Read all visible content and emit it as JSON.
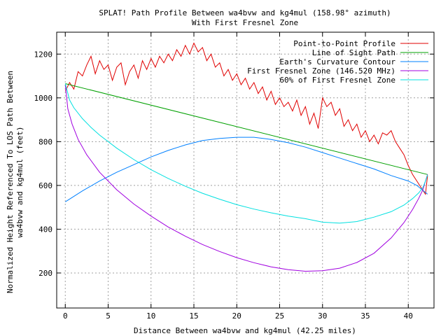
{
  "chart_data": {
    "type": "line",
    "title": "SPLAT! Path Profile Between wa4bvw and kg4mul (158.98° azimuth)",
    "subtitle": "With First Fresnel Zone",
    "xlabel": "Distance Between wa4bvw and kg4mul (42.25 miles)",
    "ylabel": [
      "Normalized Height Referenced To LOS Path Between",
      "wa4bvw and kg4mul (feet)"
    ],
    "xlim": [
      -1,
      43
    ],
    "ylim": [
      40,
      1300
    ],
    "xticks": [
      0,
      5,
      10,
      15,
      20,
      25,
      30,
      35,
      40
    ],
    "yticks": [
      200,
      400,
      600,
      800,
      1000,
      1200
    ],
    "grid": true,
    "legend_position": "top-right",
    "series": [
      {
        "name": "Point-to-Point Profile",
        "color": "#e00000",
        "x": [
          0,
          0.5,
          1,
          1.5,
          2,
          2.5,
          3,
          3.5,
          4,
          4.5,
          5,
          5.5,
          6,
          6.5,
          7,
          7.5,
          8,
          8.5,
          9,
          9.5,
          10,
          10.5,
          11,
          11.5,
          12,
          12.5,
          13,
          13.5,
          14,
          14.5,
          15,
          15.5,
          16,
          16.5,
          17,
          17.5,
          18,
          18.5,
          19,
          19.5,
          20,
          20.5,
          21,
          21.5,
          22,
          22.5,
          23,
          23.5,
          24,
          24.5,
          25,
          25.5,
          26,
          26.5,
          27,
          27.5,
          28,
          28.5,
          29,
          29.5,
          30,
          30.5,
          31,
          31.5,
          32,
          32.5,
          33,
          33.5,
          34,
          34.5,
          35,
          35.5,
          36,
          36.5,
          37,
          37.5,
          38,
          38.5,
          39,
          39.5,
          40,
          40.5,
          41,
          41.5,
          42,
          42.25
        ],
        "values": [
          1030,
          1070,
          1040,
          1120,
          1100,
          1150,
          1190,
          1110,
          1170,
          1130,
          1150,
          1080,
          1140,
          1160,
          1060,
          1120,
          1150,
          1090,
          1170,
          1130,
          1180,
          1140,
          1190,
          1160,
          1200,
          1170,
          1220,
          1190,
          1240,
          1200,
          1250,
          1210,
          1230,
          1170,
          1200,
          1140,
          1160,
          1100,
          1130,
          1080,
          1110,
          1060,
          1090,
          1040,
          1070,
          1020,
          1050,
          990,
          1030,
          970,
          1000,
          960,
          980,
          940,
          990,
          920,
          960,
          880,
          930,
          860,
          1000,
          960,
          980,
          920,
          950,
          870,
          900,
          850,
          880,
          820,
          850,
          800,
          830,
          790,
          840,
          830,
          850,
          800,
          770,
          740,
          690,
          650,
          620,
          590,
          560,
          645
        ]
      },
      {
        "name": "Line of Sight Path",
        "color": "#00a000",
        "x": [
          0,
          42.25
        ],
        "values": [
          1065,
          650
        ]
      },
      {
        "name": "Earth's Curvature Contour",
        "color": "#0080ff",
        "x": [
          0,
          2,
          4,
          6,
          8,
          10,
          12,
          14,
          16,
          18,
          20,
          22,
          24,
          26,
          28,
          30,
          32,
          34,
          36,
          38,
          40,
          41,
          42.25
        ],
        "values": [
          525,
          575,
          620,
          660,
          695,
          730,
          760,
          785,
          805,
          815,
          820,
          820,
          810,
          795,
          775,
          750,
          725,
          700,
          675,
          645,
          620,
          600,
          560
        ]
      },
      {
        "name": "First Fresnel Zone (146.520 MHz)",
        "color": "#a000e0",
        "x": [
          0,
          0.3,
          0.8,
          1.5,
          2.5,
          4,
          6,
          8,
          10,
          12,
          14,
          16,
          18,
          20,
          22,
          24,
          26,
          28,
          30,
          32,
          34,
          36,
          38,
          39.5,
          40.5,
          41.2,
          41.7,
          42,
          42.25
        ],
        "values": [
          1060,
          950,
          880,
          810,
          740,
          660,
          580,
          515,
          460,
          410,
          368,
          330,
          298,
          270,
          247,
          228,
          215,
          208,
          210,
          222,
          248,
          290,
          360,
          430,
          490,
          540,
          580,
          620,
          650
        ]
      },
      {
        "name": "60% of First Fresnel Zone",
        "color": "#00e0e0",
        "x": [
          0,
          0.5,
          1,
          2,
          3,
          4,
          6,
          8,
          10,
          12,
          14,
          16,
          18,
          20,
          22,
          24,
          26,
          28,
          30,
          32,
          34,
          36,
          38,
          39.5,
          40.5,
          41.2,
          41.7,
          42,
          42.25
        ],
        "values": [
          1065,
          990,
          955,
          905,
          865,
          830,
          770,
          718,
          672,
          632,
          596,
          564,
          537,
          512,
          492,
          475,
          460,
          448,
          432,
          428,
          435,
          455,
          480,
          510,
          540,
          565,
          590,
          620,
          648
        ]
      }
    ]
  }
}
